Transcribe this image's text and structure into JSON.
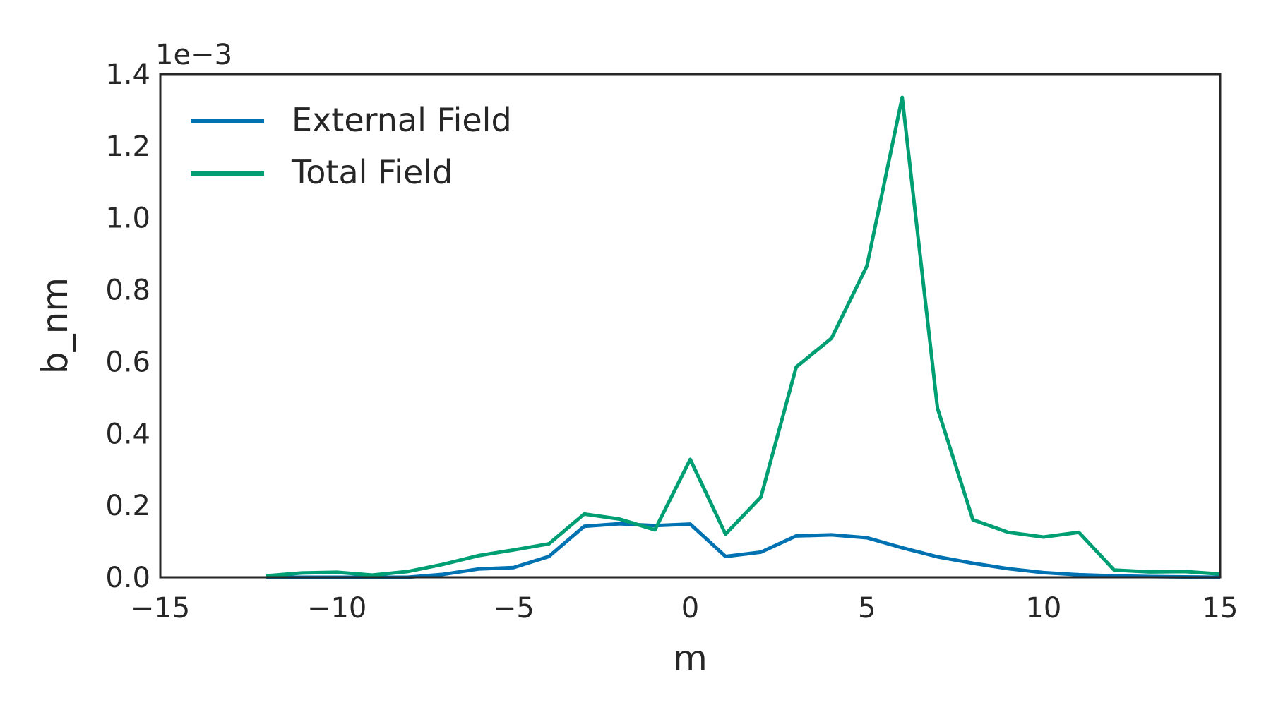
{
  "chart_data": {
    "type": "line",
    "title": "",
    "xlabel": "m",
    "ylabel": "b_nm",
    "offset_label": "1e−3",
    "xlim": [
      -15,
      15
    ],
    "ylim": [
      0,
      1.4
    ],
    "xticks": [
      -15,
      -10,
      -5,
      0,
      5,
      10,
      15
    ],
    "xtick_labels": [
      "−15",
      "−10",
      "−5",
      "0",
      "5",
      "10",
      "15"
    ],
    "yticks": [
      0,
      0.2,
      0.4,
      0.6,
      0.8,
      1.0,
      1.2,
      1.4
    ],
    "ytick_labels": [
      "0.0",
      "0.2",
      "0.4",
      "0.6",
      "0.8",
      "1.0",
      "1.2",
      "1.4"
    ],
    "grid": false,
    "legend_position": "top-left",
    "x": [
      -12,
      -11,
      -10,
      -9,
      -8,
      -7,
      -6,
      -5,
      -4,
      -3,
      -2,
      -1,
      0,
      1,
      2,
      3,
      4,
      5,
      6,
      7,
      8,
      9,
      10,
      11,
      12,
      13,
      14,
      15
    ],
    "series": [
      {
        "name": "External Field",
        "color": "#0072b2",
        "values": [
          0.0,
          0.0,
          0.0,
          0.0,
          0.0,
          0.008,
          0.023,
          0.027,
          0.058,
          0.142,
          0.149,
          0.144,
          0.148,
          0.058,
          0.07,
          0.115,
          0.118,
          0.11,
          0.082,
          0.057,
          0.039,
          0.024,
          0.013,
          0.007,
          0.004,
          0.002,
          0.001,
          0.0
        ]
      },
      {
        "name": "Total Field",
        "color": "#009e73",
        "values": [
          0.004,
          0.012,
          0.014,
          0.006,
          0.016,
          0.036,
          0.06,
          0.076,
          0.093,
          0.176,
          0.162,
          0.132,
          0.328,
          0.12,
          0.223,
          0.585,
          0.665,
          0.866,
          1.335,
          0.47,
          0.16,
          0.125,
          0.112,
          0.125,
          0.02,
          0.015,
          0.016,
          0.009
        ]
      }
    ]
  }
}
